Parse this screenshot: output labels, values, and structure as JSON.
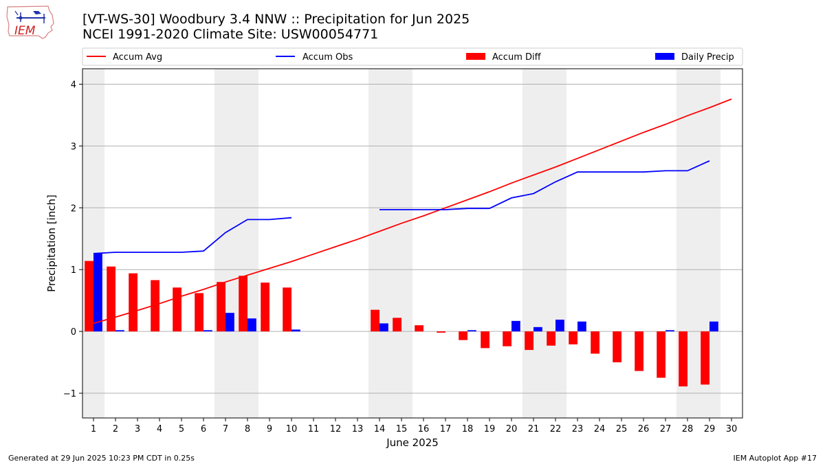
{
  "header": {
    "title_line1": "[VT-WS-30] Woodbury 3.4 NNW :: Precipitation for Jun 2025",
    "title_line2": "NCEI 1991-2020 Climate Site: USW00054771",
    "logo_text": "IEM"
  },
  "footer": {
    "left": "Generated at 29 Jun 2025 10:23 PM CDT in 0.25s",
    "right": "IEM Autoplot App #17"
  },
  "colors": {
    "accum_avg": "#ff0000",
    "accum_obs": "#0000ff",
    "accum_diff": "#ff0000",
    "daily_precip": "#0000ff",
    "weekend_shade": "#eeeeee",
    "grid": "#b0b0b0"
  },
  "chart_data": {
    "type": "bar",
    "xlabel": "June 2025",
    "ylabel": "Precipitation [inch]",
    "xlim": [
      0.5,
      30.5
    ],
    "ylim": [
      -1.4,
      4.25
    ],
    "yticks": [
      -1,
      0,
      1,
      2,
      3,
      4
    ],
    "ytick_labels": [
      "−1",
      "0",
      "1",
      "2",
      "3",
      "4"
    ],
    "xticks": [
      1,
      2,
      3,
      4,
      5,
      6,
      7,
      8,
      9,
      10,
      11,
      12,
      13,
      14,
      15,
      16,
      17,
      18,
      19,
      20,
      21,
      22,
      23,
      24,
      25,
      26,
      27,
      28,
      29,
      30
    ],
    "grid": "horizontal",
    "legend_position": "top",
    "shaded_days": [
      1,
      7,
      8,
      14,
      15,
      21,
      22,
      28,
      29
    ],
    "legend": [
      "Accum Avg",
      "Accum Obs",
      "Accum Diff",
      "Daily Precip"
    ],
    "accum_avg": {
      "name": "Accum Avg",
      "x": [
        1,
        2,
        3,
        4,
        5,
        6,
        7,
        8,
        9,
        10,
        11,
        12,
        13,
        14,
        15,
        16,
        17,
        18,
        19,
        20,
        21,
        22,
        23,
        24,
        25,
        26,
        27,
        28,
        29,
        30
      ],
      "y": [
        0.13,
        0.23,
        0.34,
        0.45,
        0.57,
        0.68,
        0.8,
        0.91,
        1.02,
        1.13,
        1.25,
        1.37,
        1.49,
        1.62,
        1.75,
        1.87,
        2.0,
        2.13,
        2.26,
        2.4,
        2.53,
        2.66,
        2.8,
        2.94,
        3.08,
        3.22,
        3.35,
        3.49,
        3.62,
        3.76
      ]
    },
    "accum_obs_segments": [
      {
        "x": [
          1,
          2,
          3,
          4,
          5,
          6,
          7,
          8,
          9,
          10
        ],
        "y": [
          1.26,
          1.28,
          1.28,
          1.28,
          1.28,
          1.3,
          1.6,
          1.81,
          1.81,
          1.84
        ]
      },
      {
        "x": [
          14,
          15,
          16,
          17,
          18,
          19,
          20,
          21,
          22,
          23,
          24,
          25,
          26,
          27,
          28,
          29
        ],
        "y": [
          1.97,
          1.97,
          1.97,
          1.97,
          1.99,
          1.99,
          2.16,
          2.23,
          2.42,
          2.58,
          2.58,
          2.58,
          2.58,
          2.6,
          2.6,
          2.76
        ]
      }
    ],
    "accum_diff": {
      "name": "Accum Diff",
      "x": [
        1,
        2,
        3,
        4,
        5,
        6,
        7,
        8,
        9,
        10,
        14,
        15,
        16,
        17,
        18,
        19,
        20,
        21,
        22,
        23,
        24,
        25,
        26,
        27,
        28,
        29
      ],
      "y": [
        1.14,
        1.05,
        0.94,
        0.83,
        0.71,
        0.62,
        0.8,
        0.9,
        0.79,
        0.71,
        0.35,
        0.22,
        0.1,
        -0.02,
        -0.14,
        -0.27,
        -0.24,
        -0.3,
        -0.23,
        -0.21,
        -0.36,
        -0.5,
        -0.64,
        -0.75,
        -0.89,
        -0.86
      ]
    },
    "daily_precip": {
      "name": "Daily Precip",
      "x": [
        1,
        2,
        6,
        7,
        8,
        10,
        14,
        18,
        20,
        21,
        22,
        23,
        27,
        29
      ],
      "y": [
        1.26,
        0.02,
        0.02,
        0.3,
        0.21,
        0.03,
        0.13,
        0.02,
        0.17,
        0.07,
        0.19,
        0.16,
        0.02,
        0.16
      ]
    }
  }
}
